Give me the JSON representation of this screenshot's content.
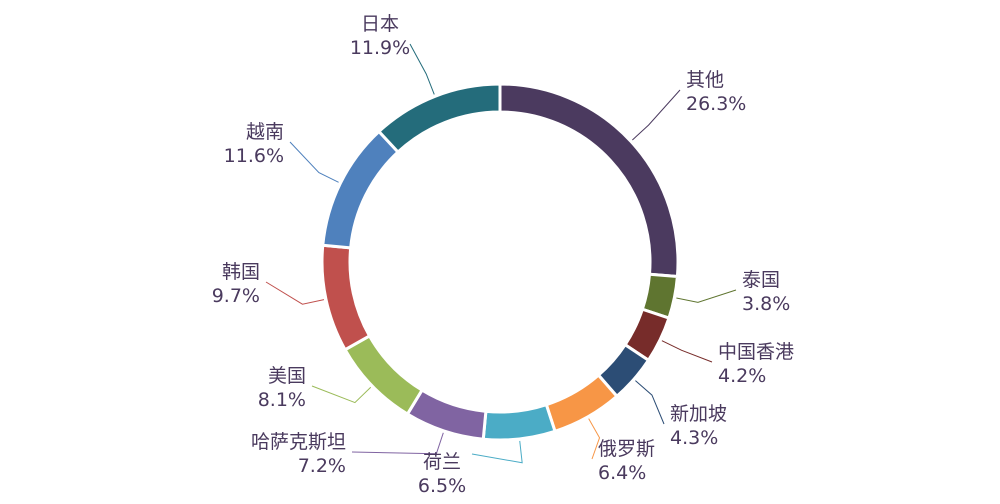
{
  "chart_data": {
    "type": "pie",
    "variant": "donut",
    "title": "",
    "unit": "%",
    "legend": "none",
    "start_angle_deg": 0,
    "direction": "clockwise",
    "slices": [
      {
        "label": "其他",
        "value": 26.3,
        "display": "26.3%",
        "color": "#4b3a5f"
      },
      {
        "label": "泰国",
        "value": 3.8,
        "display": "3.8%",
        "color": "#5f7530"
      },
      {
        "label": "中国香港",
        "value": 4.2,
        "display": "4.2%",
        "color": "#772c2a"
      },
      {
        "label": "新加坡",
        "value": 4.3,
        "display": "4.3%",
        "color": "#2c4d75"
      },
      {
        "label": "俄罗斯",
        "value": 6.4,
        "display": "6.4%",
        "color": "#f79646"
      },
      {
        "label": "荷兰",
        "value": 6.5,
        "display": "6.5%",
        "color": "#4bacc6"
      },
      {
        "label": "哈萨克斯坦",
        "value": 7.2,
        "display": "7.2%",
        "color": "#8064a2"
      },
      {
        "label": "美国",
        "value": 8.1,
        "display": "8.1%",
        "color": "#9bbb59"
      },
      {
        "label": "韩国",
        "value": 9.7,
        "display": "9.7%",
        "color": "#c0504d"
      },
      {
        "label": "越南",
        "value": 11.6,
        "display": "11.6%",
        "color": "#4f81bd"
      },
      {
        "label": "日本",
        "value": 11.9,
        "display": "11.9%",
        "color": "#246c7b"
      }
    ]
  }
}
